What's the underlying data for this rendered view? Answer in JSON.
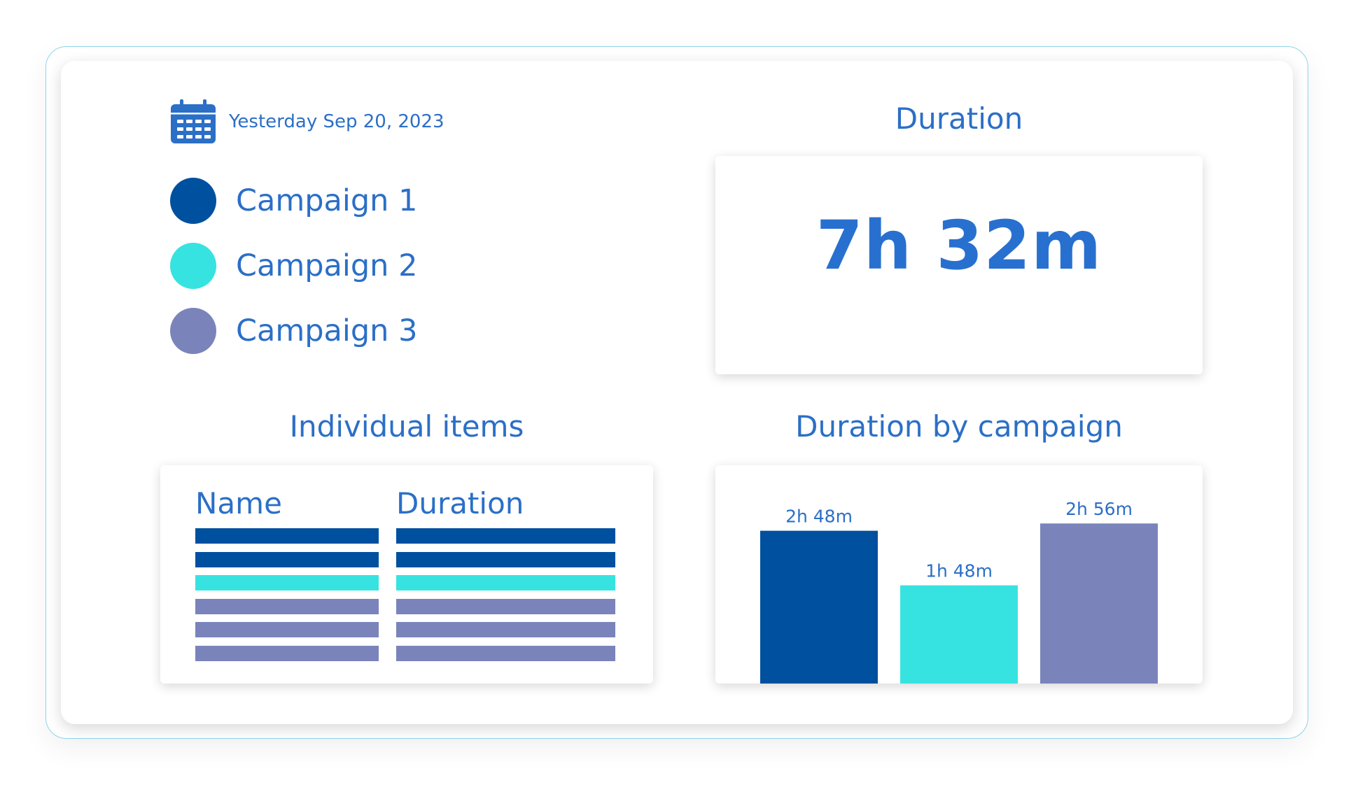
{
  "header": {
    "date_label": "Yesterday Sep 20, 2023",
    "date_icon": "calendar-icon"
  },
  "legend": [
    {
      "label": "Campaign 1",
      "color": "#0050a0"
    },
    {
      "label": "Campaign 2",
      "color": "#37e3e0"
    },
    {
      "label": "Campaign 3",
      "color": "#7a84bb"
    }
  ],
  "duration": {
    "title": "Duration",
    "value": "7h 32m"
  },
  "items": {
    "title": "Individual items",
    "columns": [
      "Name",
      "Duration"
    ],
    "row_campaigns": [
      1,
      1,
      2,
      3,
      3,
      3
    ]
  },
  "chart": {
    "title": "Duration by campaign"
  },
  "chart_data": {
    "type": "bar",
    "title": "Duration by campaign",
    "categories": [
      "Campaign 1",
      "Campaign 2",
      "Campaign 3"
    ],
    "values": [
      168,
      108,
      176
    ],
    "unit": "minutes",
    "labels": [
      "2h 48m",
      "1h 48m",
      "2h 56m"
    ],
    "colors": [
      "#0050a0",
      "#37e3e0",
      "#7a84bb"
    ],
    "ylim": [
      0,
      240
    ],
    "grid": false
  }
}
